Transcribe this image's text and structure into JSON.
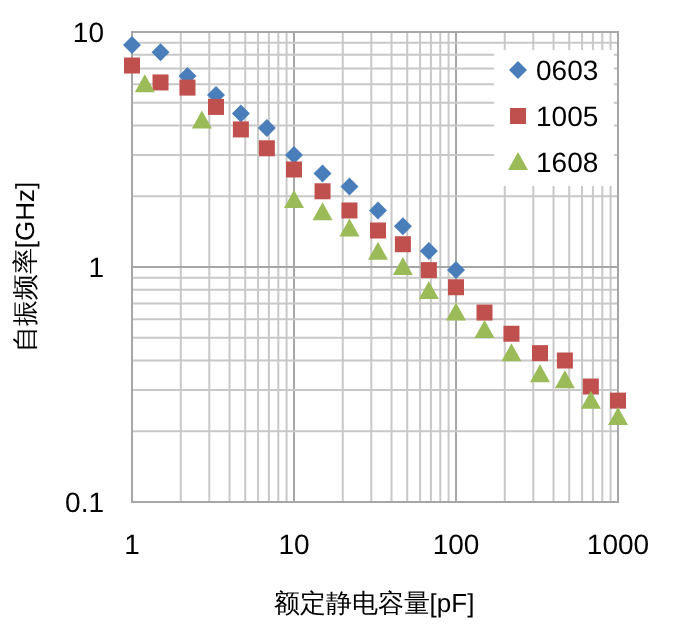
{
  "chart_data": {
    "type": "scatter",
    "xlabel": "额定静电容量[pF]",
    "ylabel": "自振频率[GHz]",
    "log": "xy",
    "grid": true,
    "legend": "top right",
    "xlim": [
      1,
      1000
    ],
    "ylim": [
      0.1,
      10
    ],
    "xticks": [
      1,
      10,
      100,
      1000
    ],
    "yticks": [
      0.1,
      1,
      10
    ],
    "series": [
      {
        "name": "0603",
        "color": "#4a7ebb",
        "marker": "diamond",
        "x": [
          1,
          1.5,
          2.2,
          3.3,
          4.7,
          6.8,
          10,
          15,
          22,
          33,
          47,
          68,
          100
        ],
        "values": [
          8.8,
          8.2,
          6.5,
          5.4,
          4.5,
          3.9,
          3.0,
          2.5,
          2.2,
          1.74,
          1.49,
          1.17,
          0.97
        ]
      },
      {
        "name": "1005",
        "color": "#c0504d",
        "marker": "square",
        "x": [
          1,
          1.5,
          2.2,
          3.3,
          4.7,
          6.8,
          10,
          15,
          22,
          33,
          47,
          68,
          100,
          150,
          220,
          330,
          470,
          680,
          1000
        ],
        "values": [
          7.2,
          6.1,
          5.8,
          4.8,
          3.85,
          3.2,
          2.6,
          2.1,
          1.74,
          1.43,
          1.25,
          0.97,
          0.82,
          0.64,
          0.52,
          0.43,
          0.4,
          0.31,
          0.27
        ]
      },
      {
        "name": "1608",
        "color": "#9bbb59",
        "marker": "triangle",
        "x": [
          1.2,
          2.7,
          10,
          15,
          22,
          33,
          47,
          68,
          100,
          150,
          220,
          330,
          470,
          680,
          1000
        ],
        "values": [
          6.0,
          4.2,
          1.93,
          1.71,
          1.46,
          1.16,
          1.0,
          0.79,
          0.64,
          0.54,
          0.43,
          0.35,
          0.33,
          0.27,
          0.23
        ]
      }
    ]
  }
}
